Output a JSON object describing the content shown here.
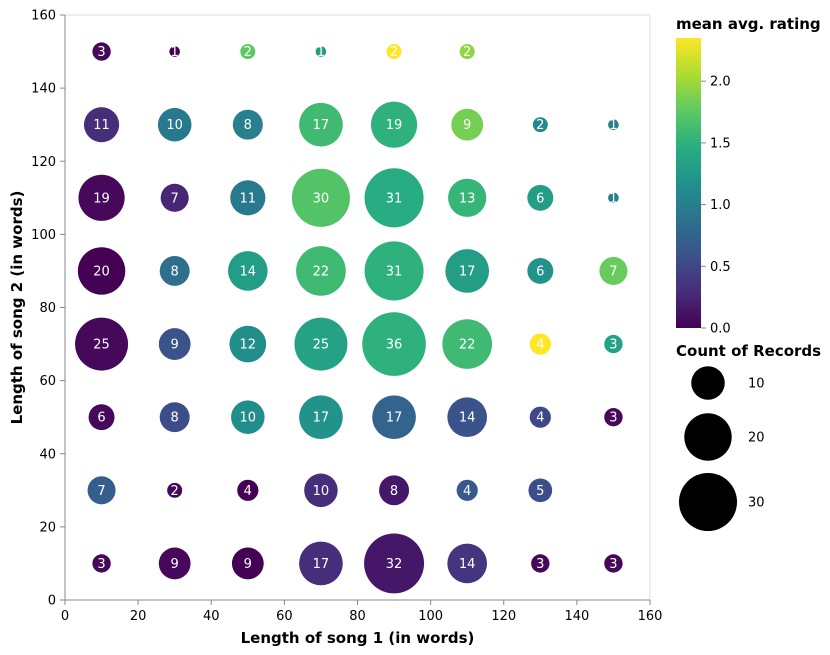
{
  "chart_data": {
    "type": "scatter",
    "x_label": "Length of song 1 (in words)",
    "y_label": "Length of song 2 (in words)",
    "x_ticks": [
      "0",
      "20",
      "40",
      "60",
      "80",
      "100",
      "120",
      "140",
      "160"
    ],
    "y_ticks": [
      "0",
      "20",
      "40",
      "60",
      "80",
      "100",
      "120",
      "140",
      "160"
    ],
    "xlim": [
      0,
      160
    ],
    "ylim": [
      0,
      160
    ],
    "grid": false,
    "color_legend": {
      "title": "mean avg. rating",
      "ticks": [
        "0.0",
        "0.5",
        "1.0",
        "1.5",
        "2.0"
      ],
      "domain": [
        0,
        2.35
      ],
      "scheme": "viridis"
    },
    "size_legend": {
      "title": "Count of Records",
      "entries": [
        {
          "label": "10",
          "value": 10
        },
        {
          "label": "20",
          "value": 20
        },
        {
          "label": "30",
          "value": 30
        }
      ]
    },
    "points": [
      {
        "x": 10,
        "y": 150,
        "count": 3,
        "rating": 0.05
      },
      {
        "x": 30,
        "y": 150,
        "count": 1,
        "rating": 0.0
      },
      {
        "x": 50,
        "y": 150,
        "count": 2,
        "rating": 1.75
      },
      {
        "x": 70,
        "y": 150,
        "count": 1,
        "rating": 1.3
      },
      {
        "x": 90,
        "y": 150,
        "count": 2,
        "rating": 2.35
      },
      {
        "x": 110,
        "y": 150,
        "count": 2,
        "rating": 1.95
      },
      {
        "x": 10,
        "y": 130,
        "count": 11,
        "rating": 0.3
      },
      {
        "x": 30,
        "y": 130,
        "count": 10,
        "rating": 0.95
      },
      {
        "x": 50,
        "y": 130,
        "count": 8,
        "rating": 1.0
      },
      {
        "x": 70,
        "y": 130,
        "count": 17,
        "rating": 1.6
      },
      {
        "x": 90,
        "y": 130,
        "count": 19,
        "rating": 1.5
      },
      {
        "x": 110,
        "y": 130,
        "count": 9,
        "rating": 1.85
      },
      {
        "x": 130,
        "y": 130,
        "count": 2,
        "rating": 1.1
      },
      {
        "x": 150,
        "y": 130,
        "count": 1,
        "rating": 1.0
      },
      {
        "x": 10,
        "y": 110,
        "count": 19,
        "rating": 0.05
      },
      {
        "x": 30,
        "y": 110,
        "count": 7,
        "rating": 0.25
      },
      {
        "x": 50,
        "y": 110,
        "count": 11,
        "rating": 0.95
      },
      {
        "x": 70,
        "y": 110,
        "count": 30,
        "rating": 1.7
      },
      {
        "x": 90,
        "y": 110,
        "count": 31,
        "rating": 1.45
      },
      {
        "x": 110,
        "y": 110,
        "count": 13,
        "rating": 1.55
      },
      {
        "x": 130,
        "y": 110,
        "count": 6,
        "rating": 1.3
      },
      {
        "x": 150,
        "y": 110,
        "count": 1,
        "rating": 1.0
      },
      {
        "x": 10,
        "y": 90,
        "count": 20,
        "rating": 0.0
      },
      {
        "x": 30,
        "y": 90,
        "count": 8,
        "rating": 0.85
      },
      {
        "x": 50,
        "y": 90,
        "count": 14,
        "rating": 1.3
      },
      {
        "x": 70,
        "y": 90,
        "count": 22,
        "rating": 1.6
      },
      {
        "x": 90,
        "y": 90,
        "count": 31,
        "rating": 1.5
      },
      {
        "x": 110,
        "y": 90,
        "count": 17,
        "rating": 1.3
      },
      {
        "x": 130,
        "y": 90,
        "count": 6,
        "rating": 1.2
      },
      {
        "x": 150,
        "y": 90,
        "count": 7,
        "rating": 1.8
      },
      {
        "x": 10,
        "y": 70,
        "count": 25,
        "rating": 0.05
      },
      {
        "x": 30,
        "y": 70,
        "count": 9,
        "rating": 0.6
      },
      {
        "x": 50,
        "y": 70,
        "count": 12,
        "rating": 1.15
      },
      {
        "x": 70,
        "y": 70,
        "count": 25,
        "rating": 1.35
      },
      {
        "x": 90,
        "y": 70,
        "count": 36,
        "rating": 1.5
      },
      {
        "x": 110,
        "y": 70,
        "count": 22,
        "rating": 1.6
      },
      {
        "x": 130,
        "y": 70,
        "count": 4,
        "rating": 2.35
      },
      {
        "x": 150,
        "y": 70,
        "count": 3,
        "rating": 1.35
      },
      {
        "x": 10,
        "y": 50,
        "count": 6,
        "rating": 0.05
      },
      {
        "x": 30,
        "y": 50,
        "count": 8,
        "rating": 0.55
      },
      {
        "x": 50,
        "y": 50,
        "count": 10,
        "rating": 1.15
      },
      {
        "x": 70,
        "y": 50,
        "count": 17,
        "rating": 1.2
      },
      {
        "x": 90,
        "y": 50,
        "count": 17,
        "rating": 0.75
      },
      {
        "x": 110,
        "y": 50,
        "count": 14,
        "rating": 0.6
      },
      {
        "x": 130,
        "y": 50,
        "count": 4,
        "rating": 0.5
      },
      {
        "x": 150,
        "y": 50,
        "count": 3,
        "rating": 0.05
      },
      {
        "x": 10,
        "y": 30,
        "count": 7,
        "rating": 0.7
      },
      {
        "x": 30,
        "y": 30,
        "count": 2,
        "rating": 0.05
      },
      {
        "x": 50,
        "y": 30,
        "count": 4,
        "rating": 0.0
      },
      {
        "x": 70,
        "y": 30,
        "count": 10,
        "rating": 0.3
      },
      {
        "x": 90,
        "y": 30,
        "count": 8,
        "rating": 0.15
      },
      {
        "x": 110,
        "y": 30,
        "count": 4,
        "rating": 0.65
      },
      {
        "x": 130,
        "y": 30,
        "count": 5,
        "rating": 0.55
      },
      {
        "x": 10,
        "y": 10,
        "count": 3,
        "rating": 0.05
      },
      {
        "x": 30,
        "y": 10,
        "count": 9,
        "rating": 0.05
      },
      {
        "x": 50,
        "y": 10,
        "count": 9,
        "rating": 0.0
      },
      {
        "x": 70,
        "y": 10,
        "count": 17,
        "rating": 0.3
      },
      {
        "x": 90,
        "y": 10,
        "count": 32,
        "rating": 0.15
      },
      {
        "x": 110,
        "y": 10,
        "count": 14,
        "rating": 0.35
      },
      {
        "x": 130,
        "y": 10,
        "count": 3,
        "rating": 0.05
      },
      {
        "x": 150,
        "y": 10,
        "count": 3,
        "rating": 0.05
      }
    ]
  }
}
